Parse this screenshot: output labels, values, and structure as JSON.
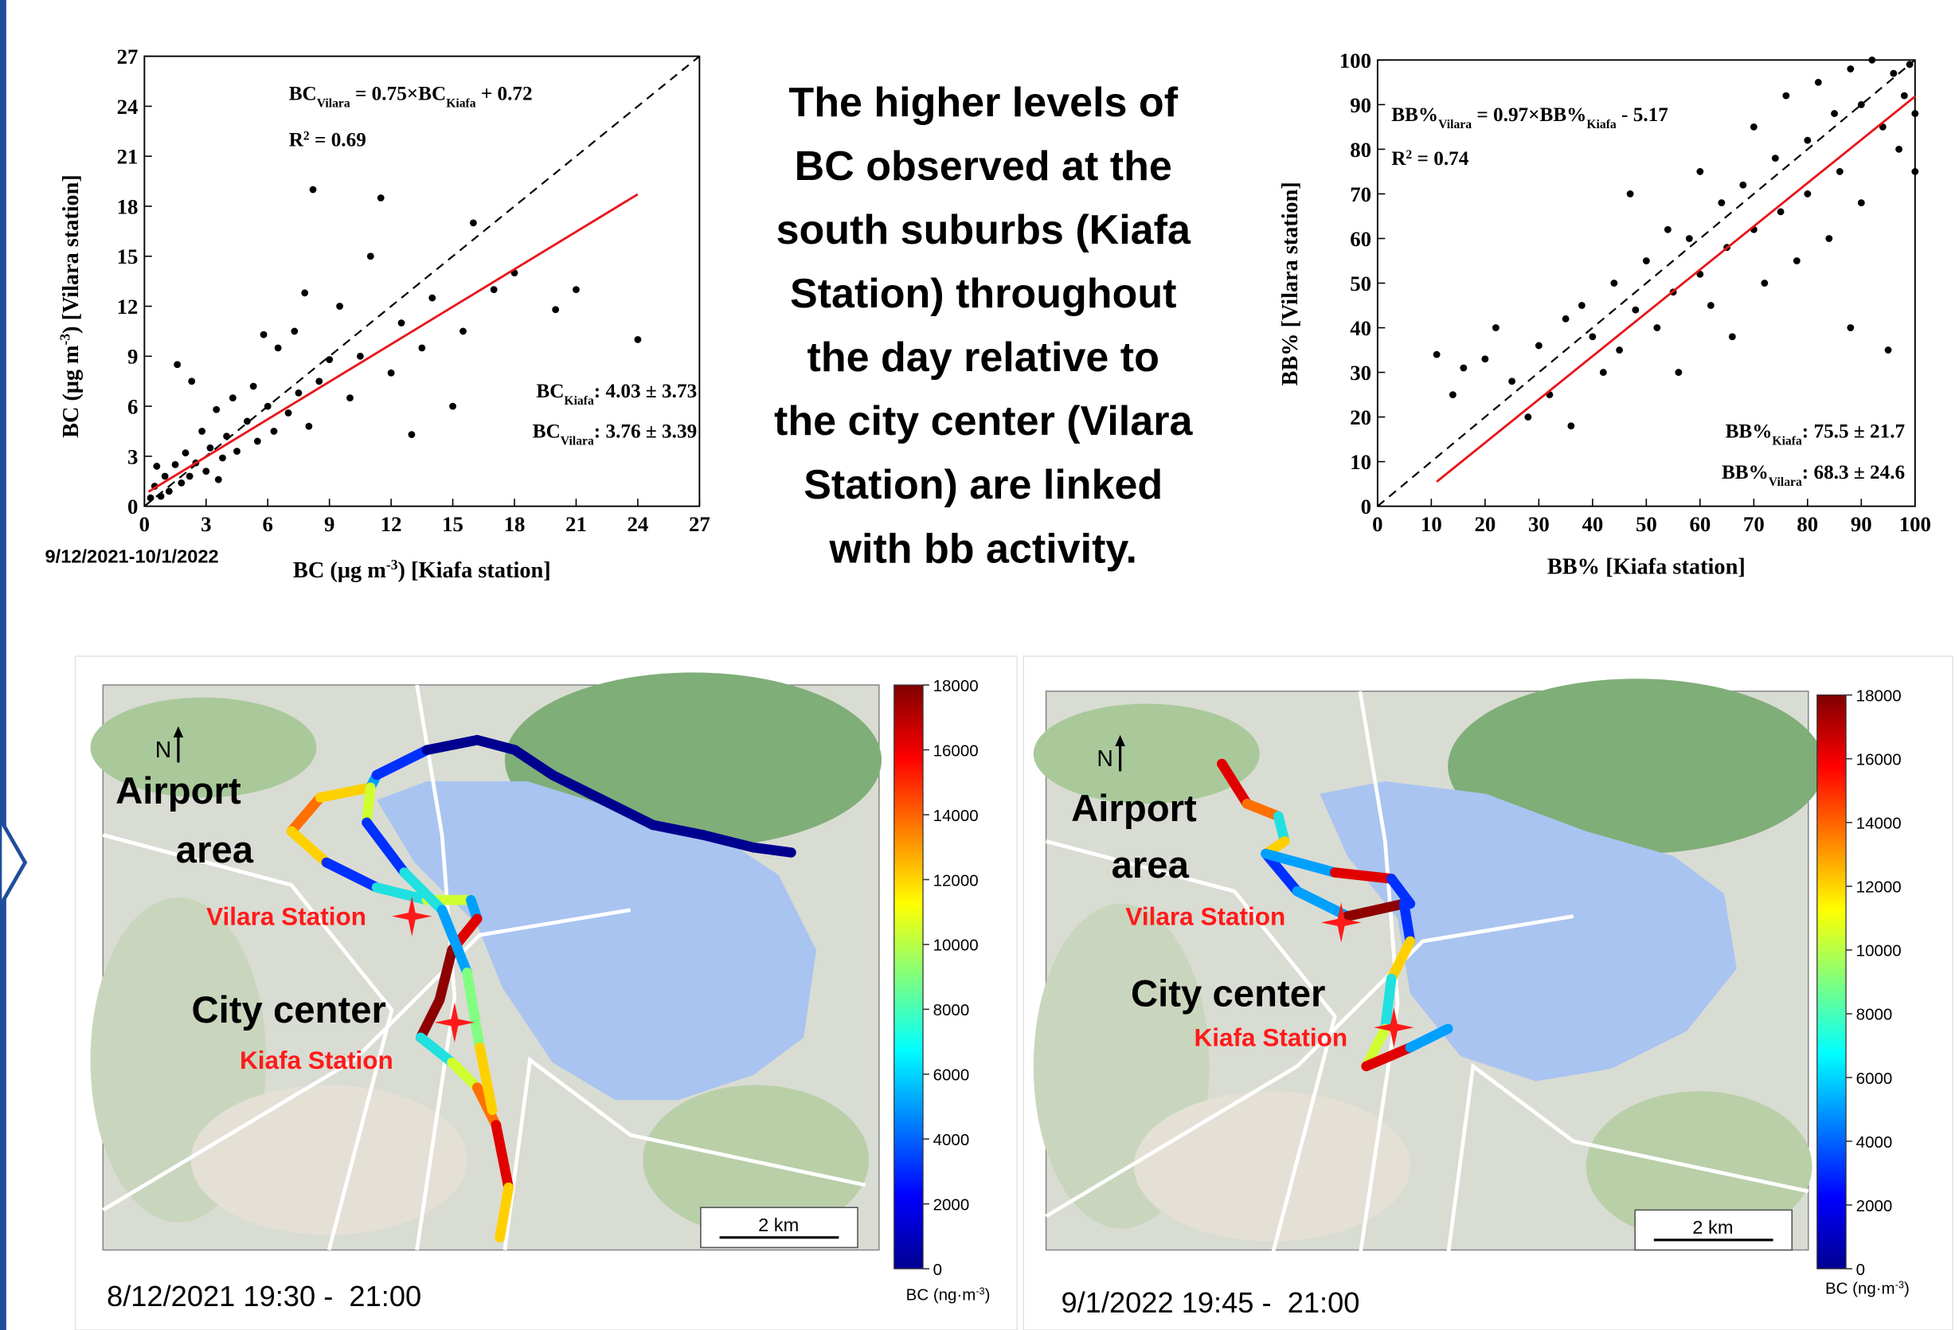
{
  "chart_data": [
    {
      "type": "scatter",
      "x": [
        0.3,
        0.5,
        0.8,
        1,
        1.2,
        1.5,
        1.8,
        2,
        2.2,
        2.5,
        2.8,
        3,
        3.2,
        3.5,
        3.8,
        4,
        4.3,
        4.5,
        5,
        5.3,
        5.5,
        6,
        6.3,
        6.5,
        7,
        7.3,
        7.5,
        8,
        8.2,
        8.5,
        9,
        9.5,
        10,
        10.5,
        11,
        11.5,
        12,
        12.5,
        13,
        13.5,
        14,
        15,
        15.5,
        16,
        17,
        18,
        20,
        21,
        24,
        1.6,
        2.3,
        0.6,
        3.6,
        7.8,
        5.8
      ],
      "values": [
        0.5,
        1.2,
        0.6,
        1.8,
        0.9,
        2.5,
        1.4,
        3.2,
        1.8,
        2.6,
        4.5,
        2.1,
        3.5,
        5.8,
        2.9,
        4.2,
        6.5,
        3.3,
        5.1,
        7.2,
        3.9,
        6,
        4.5,
        9.5,
        5.6,
        10.5,
        6.8,
        4.8,
        19,
        7.5,
        8.8,
        12,
        6.5,
        9,
        15,
        18.5,
        8,
        11,
        4.3,
        9.5,
        12.5,
        6,
        10.5,
        17,
        13,
        14,
        11.8,
        13,
        10,
        8.5,
        7.5,
        2.4,
        1.6,
        12.8,
        10.3
      ],
      "color": "#000000",
      "xlim": [
        0,
        27
      ],
      "ylim": [
        0,
        27
      ],
      "xticks": [
        0,
        3,
        6,
        9,
        12,
        15,
        18,
        21,
        24,
        27
      ],
      "yticks": [
        0,
        3,
        6,
        9,
        12,
        15,
        18,
        21,
        24,
        27
      ],
      "xlabel": [
        {
          "text": "BC (μg m"
        },
        {
          "text": "-3",
          "sup": true
        },
        {
          "text": ") [Kiafa station]"
        }
      ],
      "ylabel": [
        {
          "text": "BC (μg m"
        },
        {
          "text": "-3",
          "sup": true
        },
        {
          "text": ") [Vilara station]"
        }
      ],
      "annotations": [
        [
          {
            "text": "BC"
          },
          {
            "text": "Vilara",
            "sub": true
          },
          {
            "text": " = 0.75×BC"
          },
          {
            "text": "Kiafa",
            "sub": true
          },
          {
            "text": " + 0.72"
          }
        ],
        [
          {
            "text": "R"
          },
          {
            "text": "2",
            "sup": true
          },
          {
            "text": " = 0.69"
          }
        ],
        [
          {
            "text": "BC"
          },
          {
            "text": "Kiafa",
            "sub": true
          },
          {
            "text": ": 4.03 ± 3.73"
          }
        ],
        [
          {
            "text": "BC"
          },
          {
            "text": "Vilara",
            "sub": true
          },
          {
            "text": ": 3.76 ± 3.39"
          }
        ]
      ],
      "fit_line": {
        "slope": 0.75,
        "intercept": 0.72,
        "color": "#e8151b",
        "x_range": [
          0.2,
          24
        ]
      },
      "reference_line": {
        "slope": 1,
        "intercept": 0,
        "color": "#000000"
      },
      "period": "9/12/2021-10/1/2022"
    },
    {
      "type": "scatter",
      "x": [
        11,
        16,
        20,
        25,
        28,
        30,
        32,
        35,
        36,
        38,
        40,
        42,
        44,
        45,
        47,
        48,
        50,
        52,
        54,
        55,
        56,
        58,
        60,
        60,
        62,
        64,
        65,
        66,
        68,
        70,
        70,
        72,
        74,
        75,
        76,
        78,
        80,
        80,
        82,
        84,
        85,
        86,
        88,
        88,
        90,
        90,
        92,
        94,
        95,
        96,
        97,
        98,
        99,
        100,
        100,
        22,
        14
      ],
      "values": [
        34,
        31,
        33,
        28,
        20,
        36,
        25,
        42,
        18,
        45,
        38,
        30,
        50,
        35,
        70,
        44,
        55,
        40,
        62,
        48,
        30,
        60,
        52,
        75,
        45,
        68,
        58,
        38,
        72,
        62,
        85,
        50,
        78,
        66,
        92,
        55,
        82,
        70,
        95,
        60,
        88,
        75,
        98,
        40,
        90,
        68,
        100,
        85,
        35,
        97,
        80,
        92,
        99,
        88,
        75,
        40,
        25
      ],
      "color": "#000000",
      "xlim": [
        0,
        100
      ],
      "ylim": [
        0,
        100
      ],
      "xticks": [
        0,
        10,
        20,
        30,
        40,
        50,
        60,
        70,
        80,
        90,
        100
      ],
      "yticks": [
        0,
        10,
        20,
        30,
        40,
        50,
        60,
        70,
        80,
        90,
        100
      ],
      "xlabel": [
        {
          "text": "BB% [Kiafa station]"
        }
      ],
      "ylabel": [
        {
          "text": "BB% [Vilara station]"
        }
      ],
      "annotations": [
        [
          {
            "text": "BB%"
          },
          {
            "text": "Vilara",
            "sub": true
          },
          {
            "text": " = 0.97×BB%"
          },
          {
            "text": "Kiafa",
            "sub": true
          },
          {
            "text": " - 5.17"
          }
        ],
        [
          {
            "text": "R"
          },
          {
            "text": "2",
            "sup": true
          },
          {
            "text": " = 0.74"
          }
        ],
        [
          {
            "text": "BB%"
          },
          {
            "text": "Kiafa",
            "sub": true
          },
          {
            "text": ": 75.5 ± 21.7"
          }
        ],
        [
          {
            "text": "BB%"
          },
          {
            "text": "Vilara",
            "sub": true
          },
          {
            "text": ": 68.3 ± 24.6"
          }
        ]
      ],
      "fit_line": {
        "slope": 0.97,
        "intercept": -5.17,
        "color": "#e8151b",
        "x_range": [
          11,
          100
        ]
      },
      "reference_line": {
        "slope": 1,
        "intercept": 0,
        "color": "#000000"
      }
    }
  ],
  "summary": {
    "lines": [
      "The higher levels of",
      "BC observed at the",
      "south suburbs (Kiafa",
      "Station) throughout",
      "the day relative to",
      "the city center (Vilara",
      "Station) are linked",
      "with bb activity."
    ]
  },
  "maps": [
    {
      "north": "N",
      "airport": [
        "Airport",
        "area"
      ],
      "vilara": "Vilara Station",
      "city": "City center",
      "kiafa": "Kiafa Station",
      "scale": "2 km",
      "date": "8/12/2021 19:30 -  21:00",
      "colorbar": {
        "lim": [
          0,
          18000
        ],
        "ticks": [
          0,
          2000,
          4000,
          6000,
          8000,
          10000,
          12000,
          14000,
          16000,
          18000
        ],
        "label": [
          {
            "text": "BC (ng·m"
          },
          {
            "text": "-3",
            "sup": true
          },
          {
            "text": ")"
          }
        ]
      }
    },
    {
      "north": "N",
      "airport": [
        "Airport",
        "area"
      ],
      "vilara": "Vilara Station",
      "city": "City center",
      "kiafa": "Kiafa Station",
      "scale": "2 km",
      "date": "9/1/2022 19:45 -  21:00",
      "colorbar": {
        "lim": [
          0,
          18000
        ],
        "ticks": [
          0,
          2000,
          4000,
          6000,
          8000,
          10000,
          12000,
          14000,
          16000,
          18000
        ],
        "label": [
          {
            "text": "BC (ng·m"
          },
          {
            "text": "-3",
            "sup": true
          },
          {
            "text": ")"
          }
        ]
      }
    }
  ]
}
